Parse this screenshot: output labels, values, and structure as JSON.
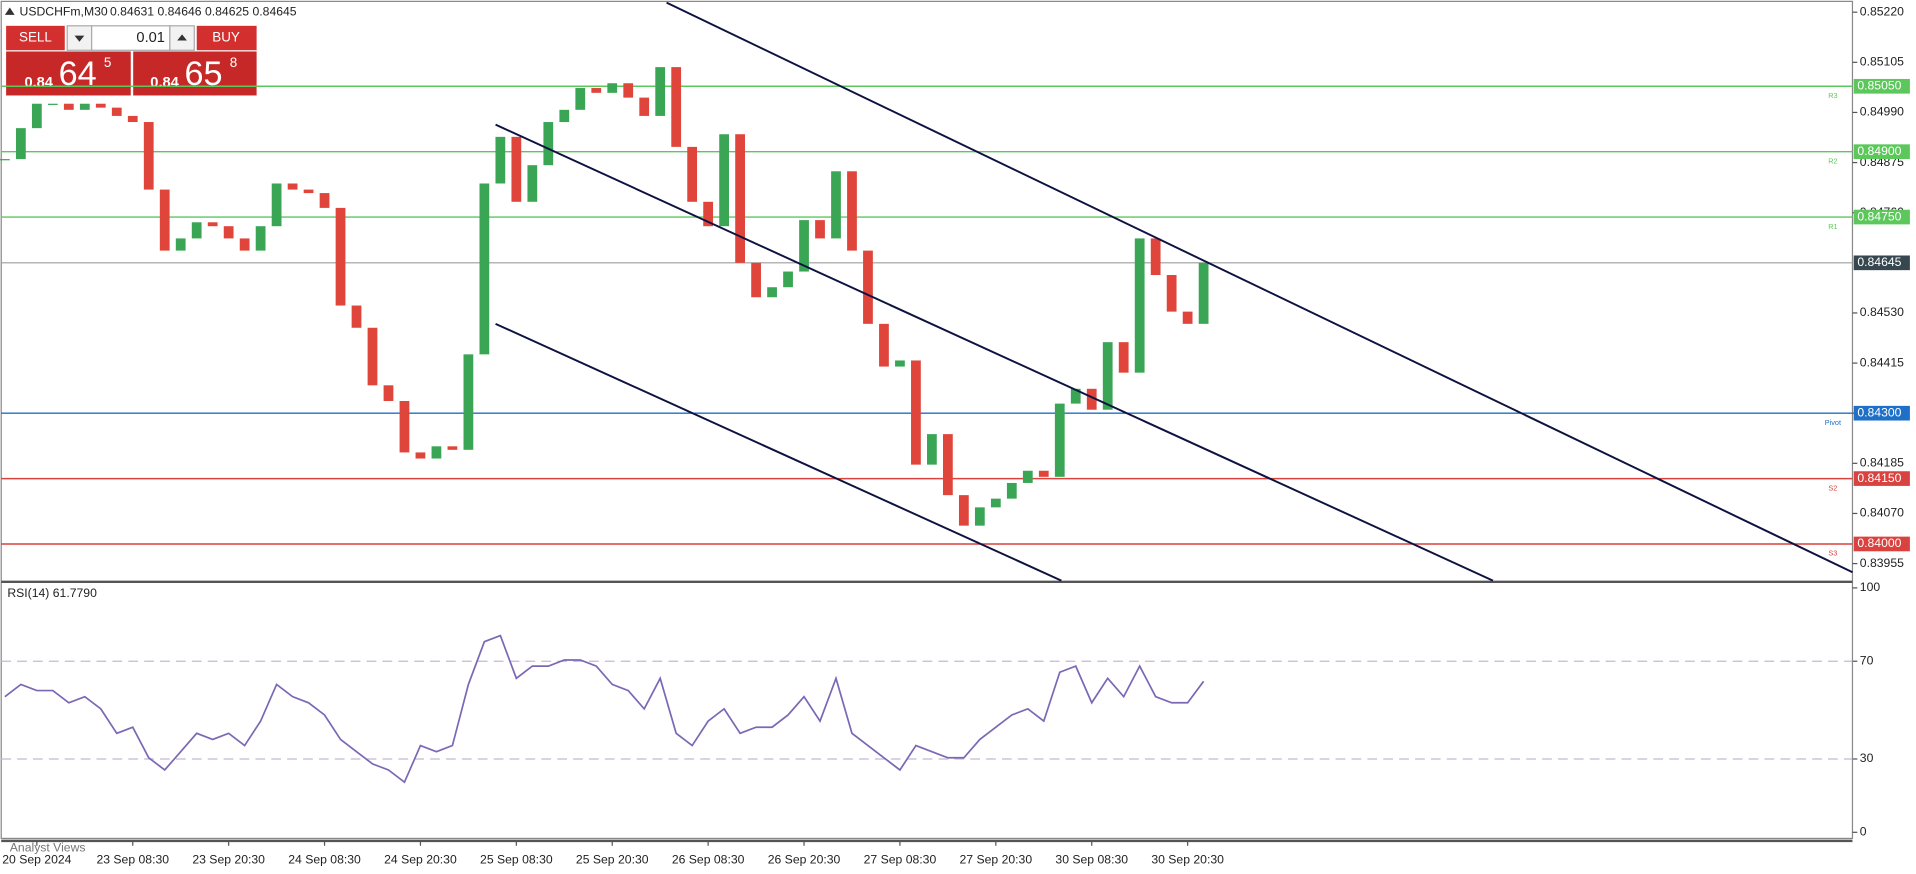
{
  "header": {
    "symbol": "USDCHFm,M30",
    "ohlc": "0.84631 0.84646 0.84625 0.84645"
  },
  "trade_panel": {
    "sell": "SELL",
    "buy": "BUY",
    "lot": "0.01",
    "bid": {
      "big": "0.84",
      "main": "64",
      "small": "5"
    },
    "ask": {
      "big": "0.84",
      "main": "65",
      "small": "8"
    }
  },
  "chart_data": {
    "type": "candlestick",
    "categories": [
      null,
      null,
      "20 Sep 2024",
      null,
      null,
      null,
      null,
      null,
      "23 Sep 08:30",
      null,
      null,
      null,
      null,
      null,
      "23 Sep 20:30",
      null,
      null,
      null,
      null,
      null,
      "24 Sep 08:30",
      null,
      null,
      null,
      null,
      null,
      "24 Sep 20:30",
      null,
      null,
      null,
      null,
      null,
      "25 Sep 08:30",
      null,
      null,
      null,
      null,
      null,
      "25 Sep 20:30",
      null,
      null,
      null,
      null,
      null,
      "26 Sep 08:30",
      null,
      null,
      null,
      null,
      null,
      "26 Sep 20:30",
      null,
      null,
      null,
      null,
      null,
      "27 Sep 08:30",
      null,
      null,
      null,
      null,
      null,
      "27 Sep 20:30",
      null,
      null,
      null,
      null,
      null,
      "30 Sep 08:30",
      null,
      null,
      null,
      null,
      null,
      "30 Sep 20:30",
      null
    ],
    "close": [
      0.84883,
      0.84954,
      0.8501,
      0.8501,
      0.84996,
      0.8501,
      0.85001,
      0.84982,
      0.84968,
      0.84813,
      0.84673,
      0.84701,
      0.84738,
      0.84729,
      0.84701,
      0.84673,
      0.84729,
      0.84827,
      0.84813,
      0.84805,
      0.84771,
      0.84547,
      0.84496,
      0.84364,
      0.84328,
      0.8421,
      0.84196,
      0.84224,
      0.84216,
      0.84435,
      0.84827,
      0.84934,
      0.84785,
      0.84869,
      0.84968,
      0.84996,
      0.85046,
      0.85035,
      0.85057,
      0.85024,
      0.84982,
      0.85094,
      0.84911,
      0.84785,
      0.84729,
      0.8494,
      0.84645,
      0.84566,
      0.84589,
      0.84625,
      0.84743,
      0.84701,
      0.84855,
      0.84673,
      0.84505,
      0.84407,
      0.84421,
      0.84182,
      0.84252,
      0.84112,
      0.84042,
      0.84084,
      0.84104,
      0.8414,
      0.84168,
      0.84154,
      0.84322,
      0.84356,
      0.84308,
      0.84463,
      0.84393,
      0.84701,
      0.84617,
      0.84533,
      0.84505,
      0.84645
    ],
    "colors": {
      "up": "#3aa655",
      "down": "#e0453b",
      "trendline": "#0d1240"
    },
    "ylim": [
      0.83916,
      0.85242
    ],
    "yticks": [
      {
        "value": 0.8522,
        "label": "0.85220"
      },
      0.85105,
      {
        "value": 0.8499,
        "label": "0.84990"
      },
      0.84875,
      {
        "value": 0.8476,
        "label": "0.84760"
      },
      {
        "value": 0.8453,
        "label": "0.84530"
      },
      0.84415,
      {
        "value": 0.843,
        "label": "0.84300"
      },
      0.84185,
      {
        "value": 0.8407,
        "label": "0.84070"
      },
      0.83955
    ],
    "levels": [
      {
        "name": "R3",
        "value": 0.8505,
        "label": "0.85050",
        "color": "#5cc85c"
      },
      {
        "name": "R2",
        "value": 0.849,
        "label": "0.84900",
        "color": "#5cc85c"
      },
      {
        "name": "R1",
        "value": 0.8475,
        "label": "0.84750",
        "color": "#5cc85c"
      },
      {
        "name": "Pivot",
        "value": 0.843,
        "label": "0.84300",
        "color": "#1e6fc7"
      },
      {
        "name": "S2",
        "value": 0.8415,
        "label": "0.84150",
        "color": "#d9423f"
      },
      {
        "name": "S3",
        "value": 0.84,
        "label": "0.84000",
        "color": "#d9423f"
      }
    ],
    "current_price": {
      "value": 0.84645,
      "label": "0.84645",
      "color": "#37474f"
    },
    "trendlines": [
      {
        "x": [
          41.4,
          115.6
        ],
        "y": [
          0.85242,
          0.83935
        ]
      },
      {
        "x": [
          30.7,
          93.1
        ],
        "y": [
          0.84962,
          0.83916
        ]
      },
      {
        "x": [
          30.7,
          66.1
        ],
        "y": [
          0.84505,
          0.83916
        ]
      }
    ],
    "rsi": {
      "title": "RSI(14) 61.7790",
      "color": "#7b68b5",
      "ylim": [
        0,
        100
      ],
      "yticks": [
        0,
        30,
        70,
        100
      ],
      "levels": [
        30,
        70
      ],
      "values": [
        55.5,
        60.5,
        58,
        58,
        53,
        55.5,
        50.5,
        40.5,
        43,
        30.5,
        25.5,
        33,
        40.5,
        38,
        40.5,
        35.5,
        45.5,
        60.5,
        55.5,
        53,
        48,
        38,
        33,
        28,
        25.5,
        20.5,
        35.5,
        33,
        35.5,
        60.5,
        78,
        80.5,
        63,
        68,
        68,
        70.5,
        70.5,
        68,
        60.5,
        58,
        50.5,
        63,
        40.5,
        35.5,
        45.5,
        50.5,
        40.5,
        43,
        43,
        48,
        55.5,
        45.5,
        63,
        40.5,
        35.5,
        30.5,
        25.5,
        35.5,
        33,
        30.5,
        30.5,
        38,
        43,
        48,
        50.5,
        45.5,
        65.5,
        68,
        53,
        63,
        55.5,
        68,
        55.5,
        53,
        53,
        61.779
      ]
    }
  },
  "footer": {
    "label": "Analyst Views"
  }
}
